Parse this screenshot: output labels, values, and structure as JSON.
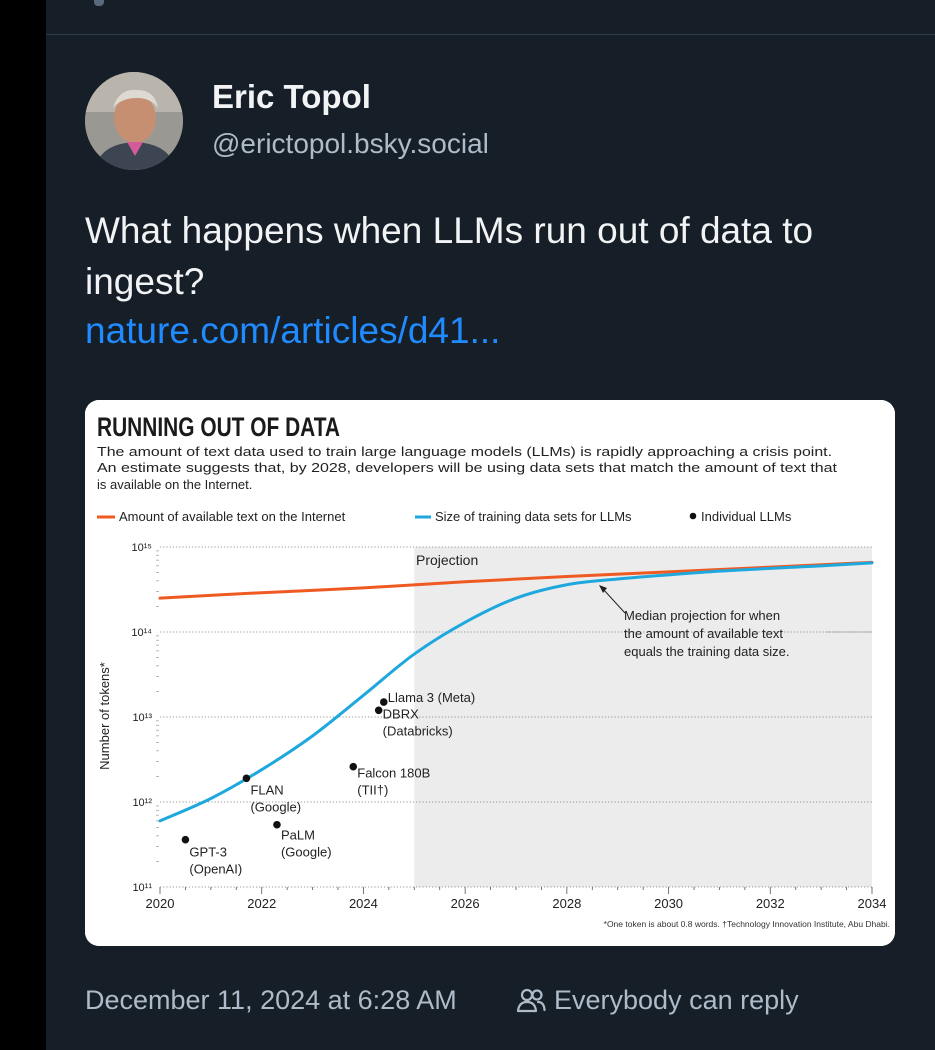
{
  "post": {
    "author_name": "Eric Topol",
    "author_handle": "@erictopol.bsky.social",
    "text": "What happens when LLMs run out of data to ingest?",
    "link_text": "nature.com/articles/d41...",
    "date": "December 11, 2024 at 6:28 AM",
    "reply_setting": "Everybody can reply"
  },
  "icons": {
    "avatar": "avatar-photo",
    "reply": "people-icon"
  },
  "colors": {
    "background": "#161e27",
    "link": "#208bfe",
    "internet_series": "#ef5a22",
    "training_series": "#1fa8de"
  },
  "chart_data": {
    "type": "line",
    "title": "RUNNING OUT OF DATA",
    "subtitle_lines": [
      "The amount of text data used to train large language models (LLMs) is rapidly approaching a crisis point.",
      "An estimate suggests that, by 2028, developers will be using data sets that match the amount of text that",
      "is available on the Internet."
    ],
    "legend": [
      "Amount of available text on the Internet",
      "Size of training data sets for LLMs",
      "Individual LLMs"
    ],
    "legend_position": "top",
    "ylabel": "Number of tokens*",
    "y_scale": "log",
    "y_ticks": [
      "10¹¹",
      "10¹²",
      "10¹³",
      "10¹⁴",
      "10¹⁵"
    ],
    "ylim": [
      100000000000.0,
      1000000000000000.0
    ],
    "x_ticks": [
      "2020",
      "2022",
      "2024",
      "2026",
      "2028",
      "2030",
      "2032",
      "2034"
    ],
    "xlim": [
      2020,
      2034
    ],
    "projection_start": 2025,
    "projection_label": "Projection",
    "annotation": [
      "Median projection for when",
      "the amount of available text",
      "equals the training data size."
    ],
    "footnote": "*One token is about 0.8 words. †Technology Innovation Institute, Abu Dhabi.",
    "series": [
      {
        "name": "Amount of available text on the Internet",
        "x": [
          2020,
          2022,
          2024,
          2026,
          2028,
          2030,
          2032,
          2034
        ],
        "y": [
          250000000000000.0,
          290000000000000.0,
          330000000000000.0,
          390000000000000.0,
          450000000000000.0,
          510000000000000.0,
          580000000000000.0,
          660000000000000.0
        ]
      },
      {
        "name": "Size of training data sets for LLMs",
        "x": [
          2020,
          2021,
          2022,
          2023,
          2024,
          2025,
          2026,
          2027,
          2028,
          2029,
          2030,
          2031,
          2032,
          2033,
          2034
        ],
        "y": [
          600000000000.0,
          1100000000000.0,
          2400000000000.0,
          6000000000000.0,
          18000000000000.0,
          55000000000000.0,
          130000000000000.0,
          250000000000000.0,
          360000000000000.0,
          420000000000000.0,
          470000000000000.0,
          520000000000000.0,
          560000000000000.0,
          600000000000000.0,
          650000000000000.0
        ]
      }
    ],
    "points": [
      {
        "label": [
          "GPT-3",
          "(OpenAI)"
        ],
        "x": 2020.5,
        "y": 360000000000.0
      },
      {
        "label": [
          "FLAN",
          "(Google)"
        ],
        "x": 2021.7,
        "y": 1900000000000.0
      },
      {
        "label": [
          "PaLM",
          "(Google)"
        ],
        "x": 2022.3,
        "y": 540000000000.0
      },
      {
        "label": [
          "Falcon 180B",
          "(TII†)"
        ],
        "x": 2023.8,
        "y": 2600000000000.0
      },
      {
        "label": [
          "DBRX",
          "(Databricks)"
        ],
        "x": 2024.3,
        "y": 12000000000000.0
      },
      {
        "label": [
          "Llama 3 (Meta)"
        ],
        "x": 2024.4,
        "y": 15000000000000.0
      }
    ]
  }
}
